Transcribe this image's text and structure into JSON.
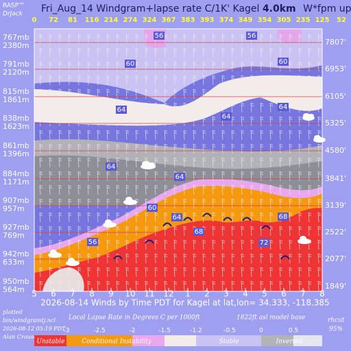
{
  "logo": {
    "name": "RASP™",
    "author": "DrJack"
  },
  "title": {
    "main": "Fri_Aug_14 Windgram+lapse rate C/1K'  Kagel",
    "height": "4.0km",
    "suffix": "W*fpm up"
  },
  "top_values": [
    0,
    72,
    81,
    116,
    214,
    274,
    324,
    367,
    383,
    393,
    374,
    349,
    354,
    305,
    235,
    125,
    52
  ],
  "levels": [
    {
      "pressure": "767mb",
      "height_m": "2380m",
      "height_ft": "7807'"
    },
    {
      "pressure": "791mb",
      "height_m": "2120m",
      "height_ft": "6953'"
    },
    {
      "pressure": "815mb",
      "height_m": "1861m",
      "height_ft": "6105'"
    },
    {
      "pressure": "838mb",
      "height_m": "1623m",
      "height_ft": "5325'"
    },
    {
      "pressure": "861mb",
      "height_m": "1396m",
      "height_ft": "4580'"
    },
    {
      "pressure": "884mb",
      "height_m": "1171m",
      "height_ft": "3841'"
    },
    {
      "pressure": "907mb",
      "height_m": "957m",
      "height_ft": "3139'"
    },
    {
      "pressure": "927mb",
      "height_m": "769m",
      "height_ft": "2522'"
    },
    {
      "pressure": "942mb",
      "height_m": "633m",
      "height_ft": "2077'"
    },
    {
      "pressure": "950mb",
      "height_m": "564m",
      "height_ft": "1849'"
    }
  ],
  "x_labels": [
    5,
    6,
    7,
    8,
    9,
    10,
    11,
    12,
    1,
    2,
    3,
    4,
    5,
    6,
    7,
    8
  ],
  "contour_labels": [
    56,
    56,
    60,
    60,
    64,
    64,
    64,
    64,
    64,
    60,
    64,
    68,
    68,
    56,
    72
  ],
  "caption": "2026-08-14 Winds by Time PDT for Kagel at lat,lon= 34.333, -118.385",
  "footer": {
    "plotted": "plotted",
    "program": "bin/windgramtj.ncl",
    "time": "2026-08-12 05:19 PDT",
    "author": "Alan Crouse"
  },
  "colorbar": {
    "title": "Local Lapse Rate in Degrees C per 1000ft",
    "base": "1822ft asl model base",
    "ticks": [
      -3,
      -2.5,
      -2,
      -1.5,
      -1.2,
      -0.5,
      0,
      0.5
    ],
    "categories": [
      "Unstable",
      "Conditional Instability",
      "Stable",
      "Inverted"
    ]
  },
  "rhcut": {
    "label": "rhcut",
    "value": "95%"
  }
}
